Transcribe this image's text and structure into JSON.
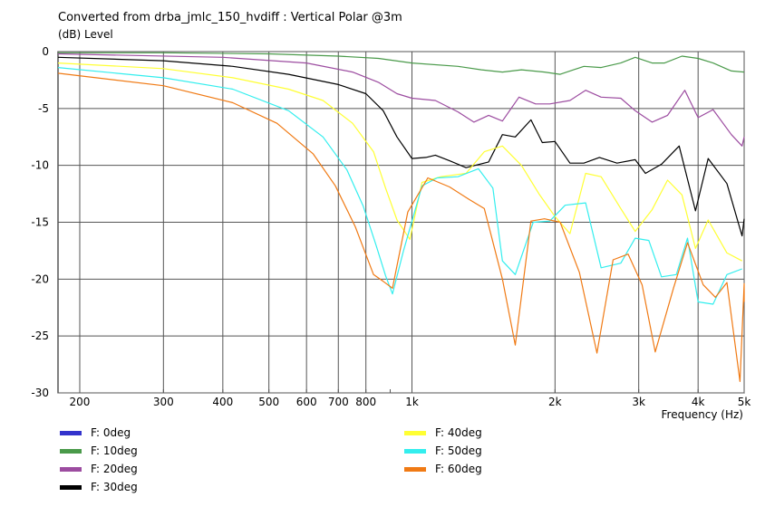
{
  "chart_data": {
    "type": "line",
    "title": "Converted from drba_jmlc_150_hvdiff : Vertical Polar @3m",
    "ylabel": "(dB)  Level",
    "xlabel": "Frequency  (Hz)",
    "x_scale": "log",
    "xlim": [
      180,
      5000
    ],
    "ylim": [
      -30,
      0
    ],
    "grid": true,
    "y_ticks": [
      "0",
      "-5",
      "-10",
      "-15",
      "-20",
      "-25",
      "-30"
    ],
    "x_ticks": [
      "200",
      "300",
      "400",
      "500",
      "600",
      "700",
      "800",
      "1k",
      "2k",
      "3k",
      "4k",
      "5k"
    ],
    "legend_position": "bottom",
    "series": [
      {
        "name": "F: 0deg",
        "color": "#3333cc",
        "points": []
      },
      {
        "name": "F: 10deg",
        "color": "#4a9a4a",
        "points": [
          [
            180,
            -0.1
          ],
          [
            300,
            -0.1
          ],
          [
            500,
            -0.2
          ],
          [
            700,
            -0.4
          ],
          [
            850,
            -0.6
          ],
          [
            1000,
            -1.0
          ],
          [
            1250,
            -1.3
          ],
          [
            1400,
            -1.6
          ],
          [
            1550,
            -1.8
          ],
          [
            1700,
            -1.6
          ],
          [
            1900,
            -1.8
          ],
          [
            2050,
            -2.0
          ],
          [
            2300,
            -1.3
          ],
          [
            2500,
            -1.4
          ],
          [
            2750,
            -1.0
          ],
          [
            2950,
            -0.5
          ],
          [
            3200,
            -1.0
          ],
          [
            3400,
            -1.0
          ],
          [
            3700,
            -0.4
          ],
          [
            4000,
            -0.6
          ],
          [
            4300,
            -1.0
          ],
          [
            4700,
            -1.7
          ],
          [
            5000,
            -1.8
          ]
        ]
      },
      {
        "name": "F: 20deg",
        "color": "#9c4ca0",
        "points": [
          [
            180,
            -0.2
          ],
          [
            400,
            -0.5
          ],
          [
            600,
            -1.0
          ],
          [
            750,
            -1.8
          ],
          [
            850,
            -2.7
          ],
          [
            930,
            -3.7
          ],
          [
            1000,
            -4.1
          ],
          [
            1120,
            -4.3
          ],
          [
            1250,
            -5.3
          ],
          [
            1350,
            -6.2
          ],
          [
            1450,
            -5.6
          ],
          [
            1550,
            -6.1
          ],
          [
            1680,
            -4.0
          ],
          [
            1820,
            -4.6
          ],
          [
            1950,
            -4.6
          ],
          [
            2150,
            -4.3
          ],
          [
            2320,
            -3.4
          ],
          [
            2500,
            -4.0
          ],
          [
            2750,
            -4.1
          ],
          [
            2950,
            -5.2
          ],
          [
            3200,
            -6.2
          ],
          [
            3450,
            -5.6
          ],
          [
            3750,
            -3.4
          ],
          [
            4000,
            -5.8
          ],
          [
            4300,
            -5.1
          ],
          [
            4700,
            -7.3
          ],
          [
            4950,
            -8.3
          ],
          [
            5000,
            -7.5
          ]
        ]
      },
      {
        "name": "F: 30deg",
        "color": "#000000",
        "points": [
          [
            180,
            -0.5
          ],
          [
            300,
            -0.8
          ],
          [
            420,
            -1.3
          ],
          [
            550,
            -2.0
          ],
          [
            700,
            -2.9
          ],
          [
            800,
            -3.7
          ],
          [
            870,
            -5.2
          ],
          [
            930,
            -7.5
          ],
          [
            1000,
            -9.4
          ],
          [
            1070,
            -9.3
          ],
          [
            1120,
            -9.1
          ],
          [
            1200,
            -9.6
          ],
          [
            1300,
            -10.2
          ],
          [
            1450,
            -9.7
          ],
          [
            1550,
            -7.3
          ],
          [
            1650,
            -7.5
          ],
          [
            1780,
            -6.0
          ],
          [
            1880,
            -8.0
          ],
          [
            2000,
            -7.9
          ],
          [
            2150,
            -9.8
          ],
          [
            2300,
            -9.8
          ],
          [
            2480,
            -9.3
          ],
          [
            2700,
            -9.8
          ],
          [
            2950,
            -9.5
          ],
          [
            3100,
            -10.7
          ],
          [
            3350,
            -9.9
          ],
          [
            3650,
            -8.3
          ],
          [
            3950,
            -14.0
          ],
          [
            4200,
            -9.4
          ],
          [
            4600,
            -11.6
          ],
          [
            4950,
            -16.2
          ],
          [
            5000,
            -14.7
          ]
        ]
      },
      {
        "name": "F: 40deg",
        "color": "#ffff33",
        "points": [
          [
            180,
            -1.0
          ],
          [
            300,
            -1.5
          ],
          [
            420,
            -2.3
          ],
          [
            550,
            -3.3
          ],
          [
            650,
            -4.3
          ],
          [
            750,
            -6.3
          ],
          [
            830,
            -8.8
          ],
          [
            880,
            -12.0
          ],
          [
            930,
            -14.8
          ],
          [
            990,
            -16.5
          ],
          [
            1050,
            -11.5
          ],
          [
            1150,
            -11.0
          ],
          [
            1300,
            -10.7
          ],
          [
            1420,
            -8.8
          ],
          [
            1550,
            -8.3
          ],
          [
            1700,
            -10.0
          ],
          [
            1850,
            -12.5
          ],
          [
            2000,
            -14.5
          ],
          [
            2150,
            -16.0
          ],
          [
            2320,
            -10.7
          ],
          [
            2500,
            -11.0
          ],
          [
            2750,
            -13.8
          ],
          [
            2950,
            -15.8
          ],
          [
            3200,
            -13.9
          ],
          [
            3450,
            -11.3
          ],
          [
            3700,
            -12.6
          ],
          [
            3950,
            -17.3
          ],
          [
            4200,
            -14.8
          ],
          [
            4600,
            -17.7
          ],
          [
            4950,
            -18.4
          ]
        ]
      },
      {
        "name": "F: 50deg",
        "color": "#33eeee",
        "points": [
          [
            180,
            -1.4
          ],
          [
            300,
            -2.3
          ],
          [
            420,
            -3.3
          ],
          [
            550,
            -5.2
          ],
          [
            650,
            -7.5
          ],
          [
            730,
            -10.4
          ],
          [
            790,
            -13.6
          ],
          [
            840,
            -17.0
          ],
          [
            880,
            -19.7
          ],
          [
            910,
            -21.3
          ],
          [
            960,
            -17.5
          ],
          [
            1050,
            -11.8
          ],
          [
            1130,
            -11.1
          ],
          [
            1250,
            -11.0
          ],
          [
            1380,
            -10.3
          ],
          [
            1480,
            -12.0
          ],
          [
            1550,
            -18.4
          ],
          [
            1650,
            -19.6
          ],
          [
            1800,
            -15.0
          ],
          [
            1950,
            -14.9
          ],
          [
            2100,
            -13.5
          ],
          [
            2320,
            -13.3
          ],
          [
            2500,
            -19.0
          ],
          [
            2750,
            -18.6
          ],
          [
            2950,
            -16.4
          ],
          [
            3150,
            -16.6
          ],
          [
            3350,
            -19.8
          ],
          [
            3600,
            -19.6
          ],
          [
            3800,
            -16.4
          ],
          [
            4000,
            -22.0
          ],
          [
            4300,
            -22.2
          ],
          [
            4600,
            -19.6
          ],
          [
            4950,
            -19.1
          ]
        ]
      },
      {
        "name": "F: 60deg",
        "color": "#f07a14",
        "points": [
          [
            180,
            -1.9
          ],
          [
            300,
            -3.0
          ],
          [
            420,
            -4.5
          ],
          [
            520,
            -6.3
          ],
          [
            620,
            -9.0
          ],
          [
            690,
            -11.8
          ],
          [
            760,
            -15.4
          ],
          [
            830,
            -19.6
          ],
          [
            870,
            -20.2
          ],
          [
            910,
            -20.8
          ],
          [
            980,
            -14.1
          ],
          [
            1080,
            -11.1
          ],
          [
            1200,
            -11.9
          ],
          [
            1320,
            -13.0
          ],
          [
            1420,
            -13.8
          ],
          [
            1550,
            -20.0
          ],
          [
            1650,
            -25.8
          ],
          [
            1780,
            -14.9
          ],
          [
            1900,
            -14.7
          ],
          [
            2050,
            -15.0
          ],
          [
            2250,
            -19.4
          ],
          [
            2450,
            -26.5
          ],
          [
            2650,
            -18.3
          ],
          [
            2850,
            -17.8
          ],
          [
            3050,
            -20.5
          ],
          [
            3250,
            -26.4
          ],
          [
            3550,
            -20.8
          ],
          [
            3800,
            -16.8
          ],
          [
            4100,
            -20.5
          ],
          [
            4350,
            -21.6
          ],
          [
            4600,
            -20.3
          ],
          [
            4900,
            -29.0
          ],
          [
            5000,
            -20.4
          ],
          [
            5000,
            -22.0
          ]
        ]
      }
    ]
  }
}
